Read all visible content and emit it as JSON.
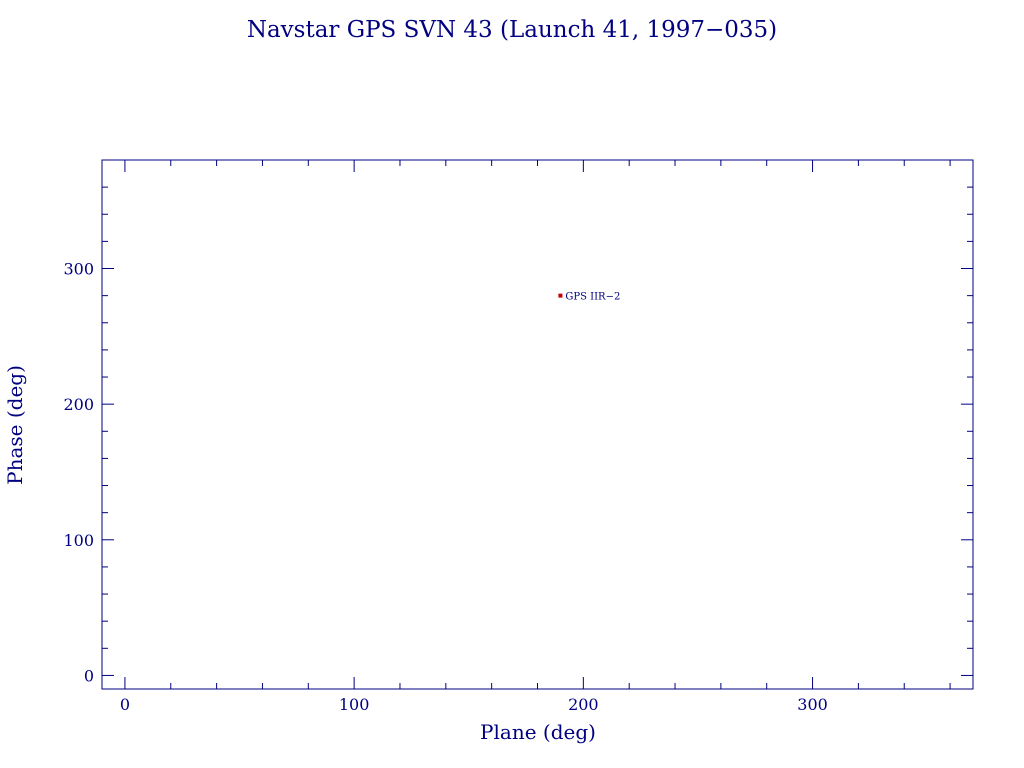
{
  "chart_data": {
    "type": "scatter",
    "title": "Navstar GPS SVN 43 (Launch 41, 1997−035)",
    "xlabel": "Plane (deg)",
    "ylabel": "Phase (deg)",
    "xlim": [
      -10,
      370
    ],
    "ylim": [
      -10,
      380
    ],
    "x_ticks": [
      0,
      100,
      200,
      300
    ],
    "y_ticks": [
      0,
      100,
      200,
      300
    ],
    "x_minor_step": 20,
    "y_minor_step": 20,
    "grid": false,
    "colors": {
      "axis": "#000080",
      "point": "#cc0000"
    },
    "points": [
      {
        "x": 190,
        "y": 280,
        "label": "GPS IIR−2"
      }
    ]
  }
}
